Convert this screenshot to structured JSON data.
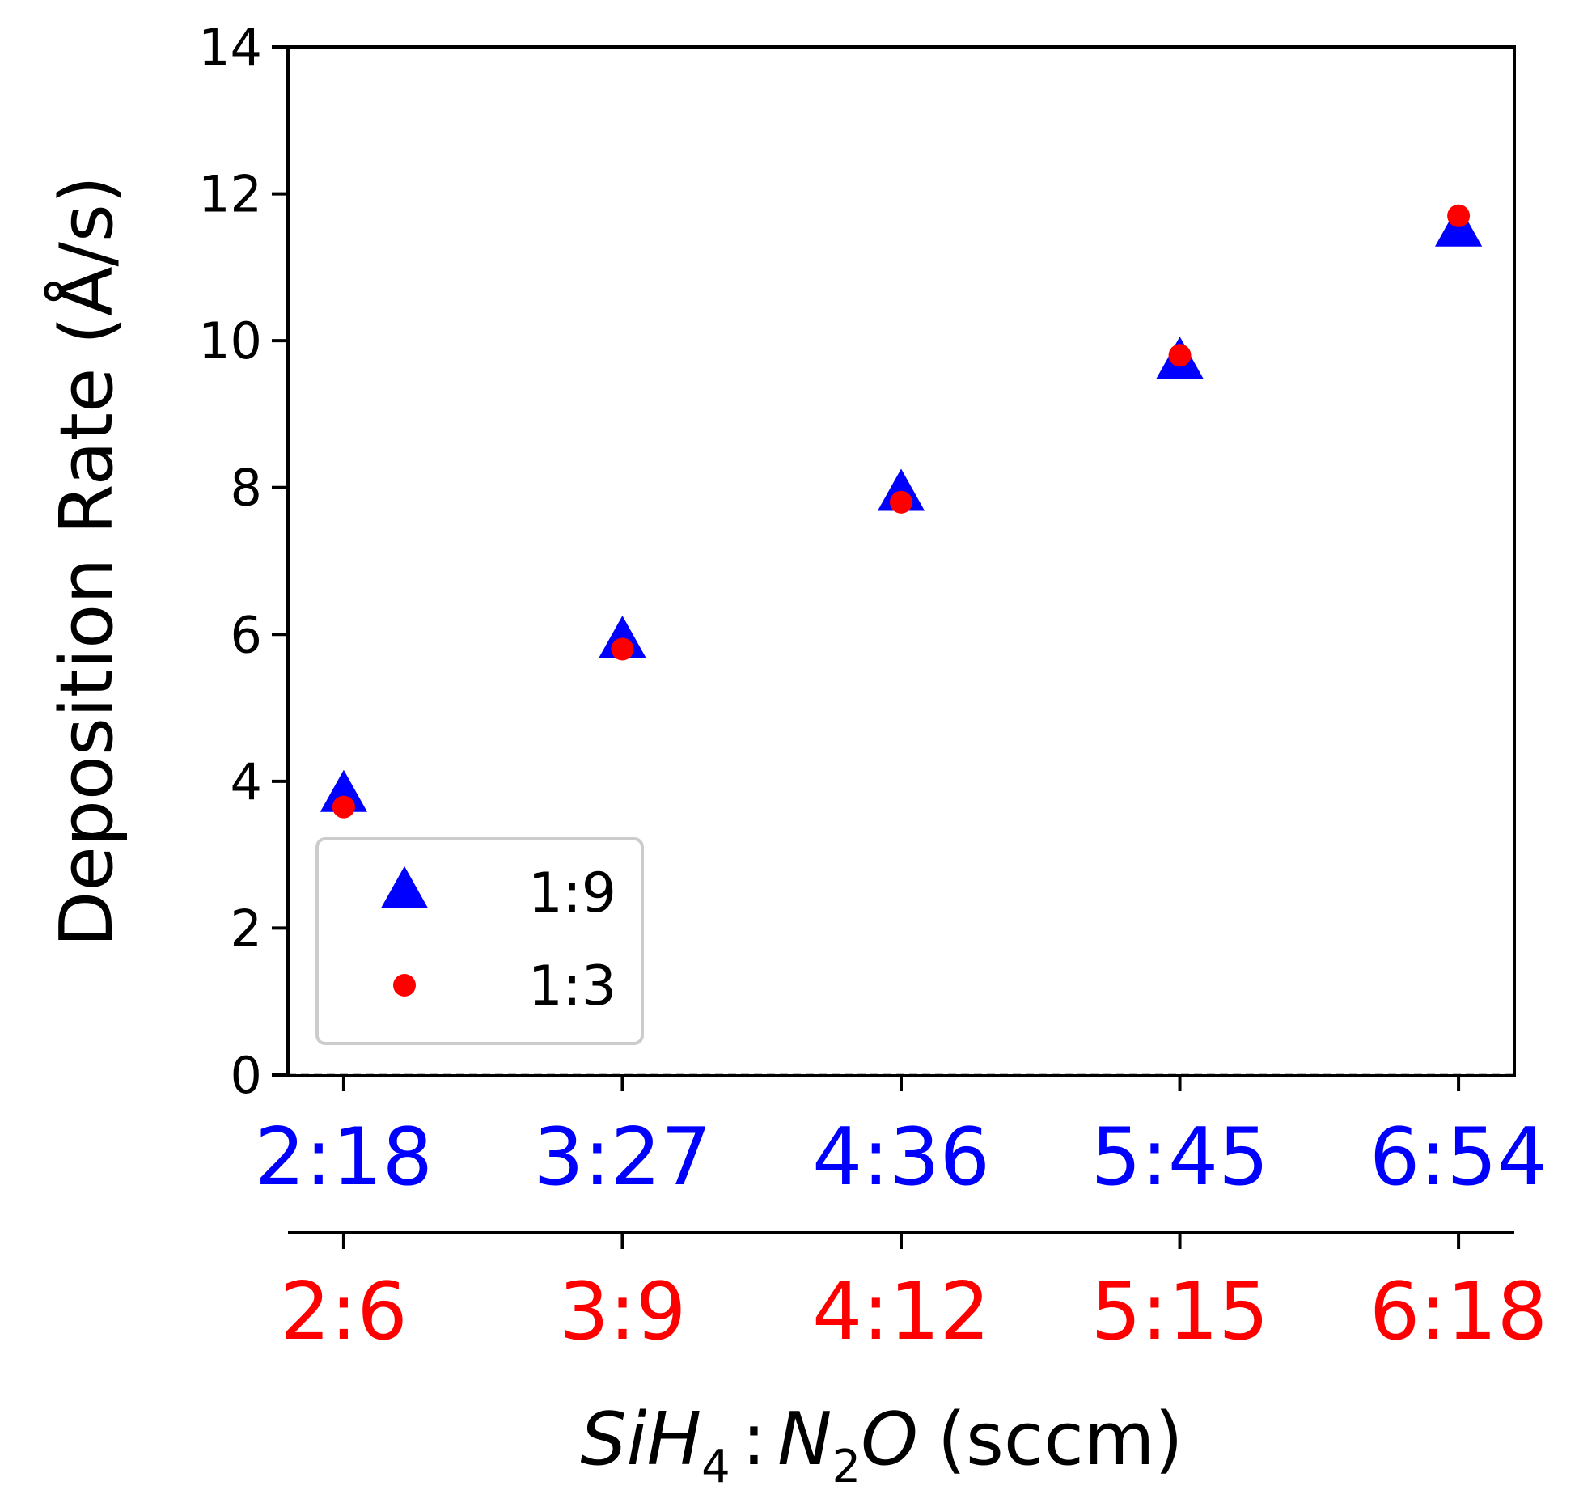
{
  "chart_data": {
    "type": "scatter",
    "title": "",
    "ylabel": "Deposition Rate (Å/s)",
    "xlabel": {
      "si": "Si",
      "h": "H",
      "h_sub": "4",
      "colon": ":",
      "n": "N",
      "n_sub": "2",
      "o": "O",
      "unit": "(sccm)"
    },
    "ylim": [
      0,
      14
    ],
    "yticks": [
      "0",
      "2",
      "4",
      "6",
      "8",
      "10",
      "12",
      "14"
    ],
    "xlim": [
      0.8,
      5.2
    ],
    "x": [
      1,
      2,
      3,
      4,
      5
    ],
    "xtick_labels_top": [
      "2:18",
      "3:27",
      "4:36",
      "5:45",
      "6:54"
    ],
    "xtick_labels_bottom": [
      "2:6",
      "3:9",
      "4:12",
      "5:15",
      "6:18"
    ],
    "xtick_top_color": "#0000ff",
    "xtick_bottom_color": "#ff0000",
    "grid": false,
    "legend_position": "lower-left",
    "series": [
      {
        "name": "1:9",
        "marker": "triangle",
        "color": "#0000ff",
        "values": [
          3.8,
          5.9,
          7.9,
          9.7,
          11.5
        ]
      },
      {
        "name": "1:3",
        "marker": "circle",
        "color": "#ff0000",
        "values": [
          3.65,
          5.8,
          7.8,
          9.8,
          11.7
        ]
      }
    ]
  }
}
